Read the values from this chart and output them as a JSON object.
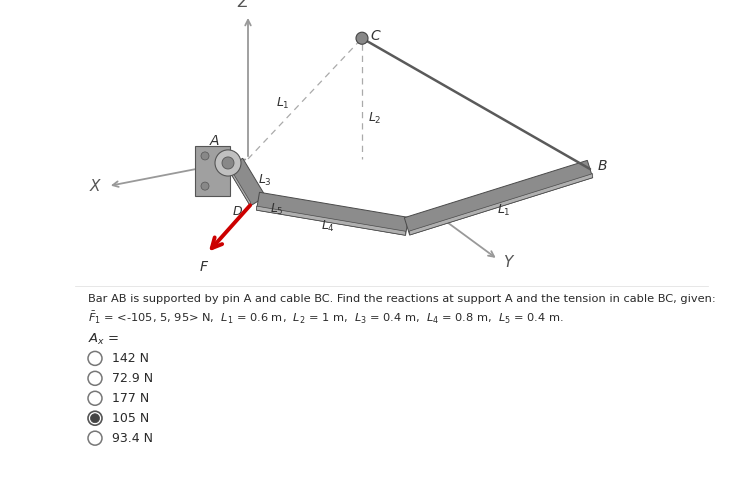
{
  "fig_width": 7.45,
  "fig_height": 5.03,
  "dpi": 100,
  "bg_color": "#ffffff",
  "title_text": "Bar AB is supported by pin A and cable BC. Find the reactions at support A and the tension in cable BC, given:",
  "subtitle_text": "F₁ = <-105, 5, 95> N,  L₁ = 0.6 m,  L₂ = 1 m,  L₃ = 0.4 m,  L₄ = 0.8 m,  L₅ = 0.4 m.",
  "options": [
    "142 N",
    "72.9 N",
    "177 N",
    "105 N",
    "93.4 N"
  ],
  "selected_index": 3,
  "text_color": "#2a2a2a",
  "bar_gray": "#8c8c8c",
  "bar_dark": "#5a5a5a",
  "bar_light": "#b0b0b0",
  "cable_color": "#5a5a5a",
  "axis_color": "#999999",
  "force_color": "#cc0000",
  "dashed_color": "#aaaaaa",
  "label_color": "#333333",
  "wall_color": "#909090",
  "pin_color": "#c0c0c0"
}
